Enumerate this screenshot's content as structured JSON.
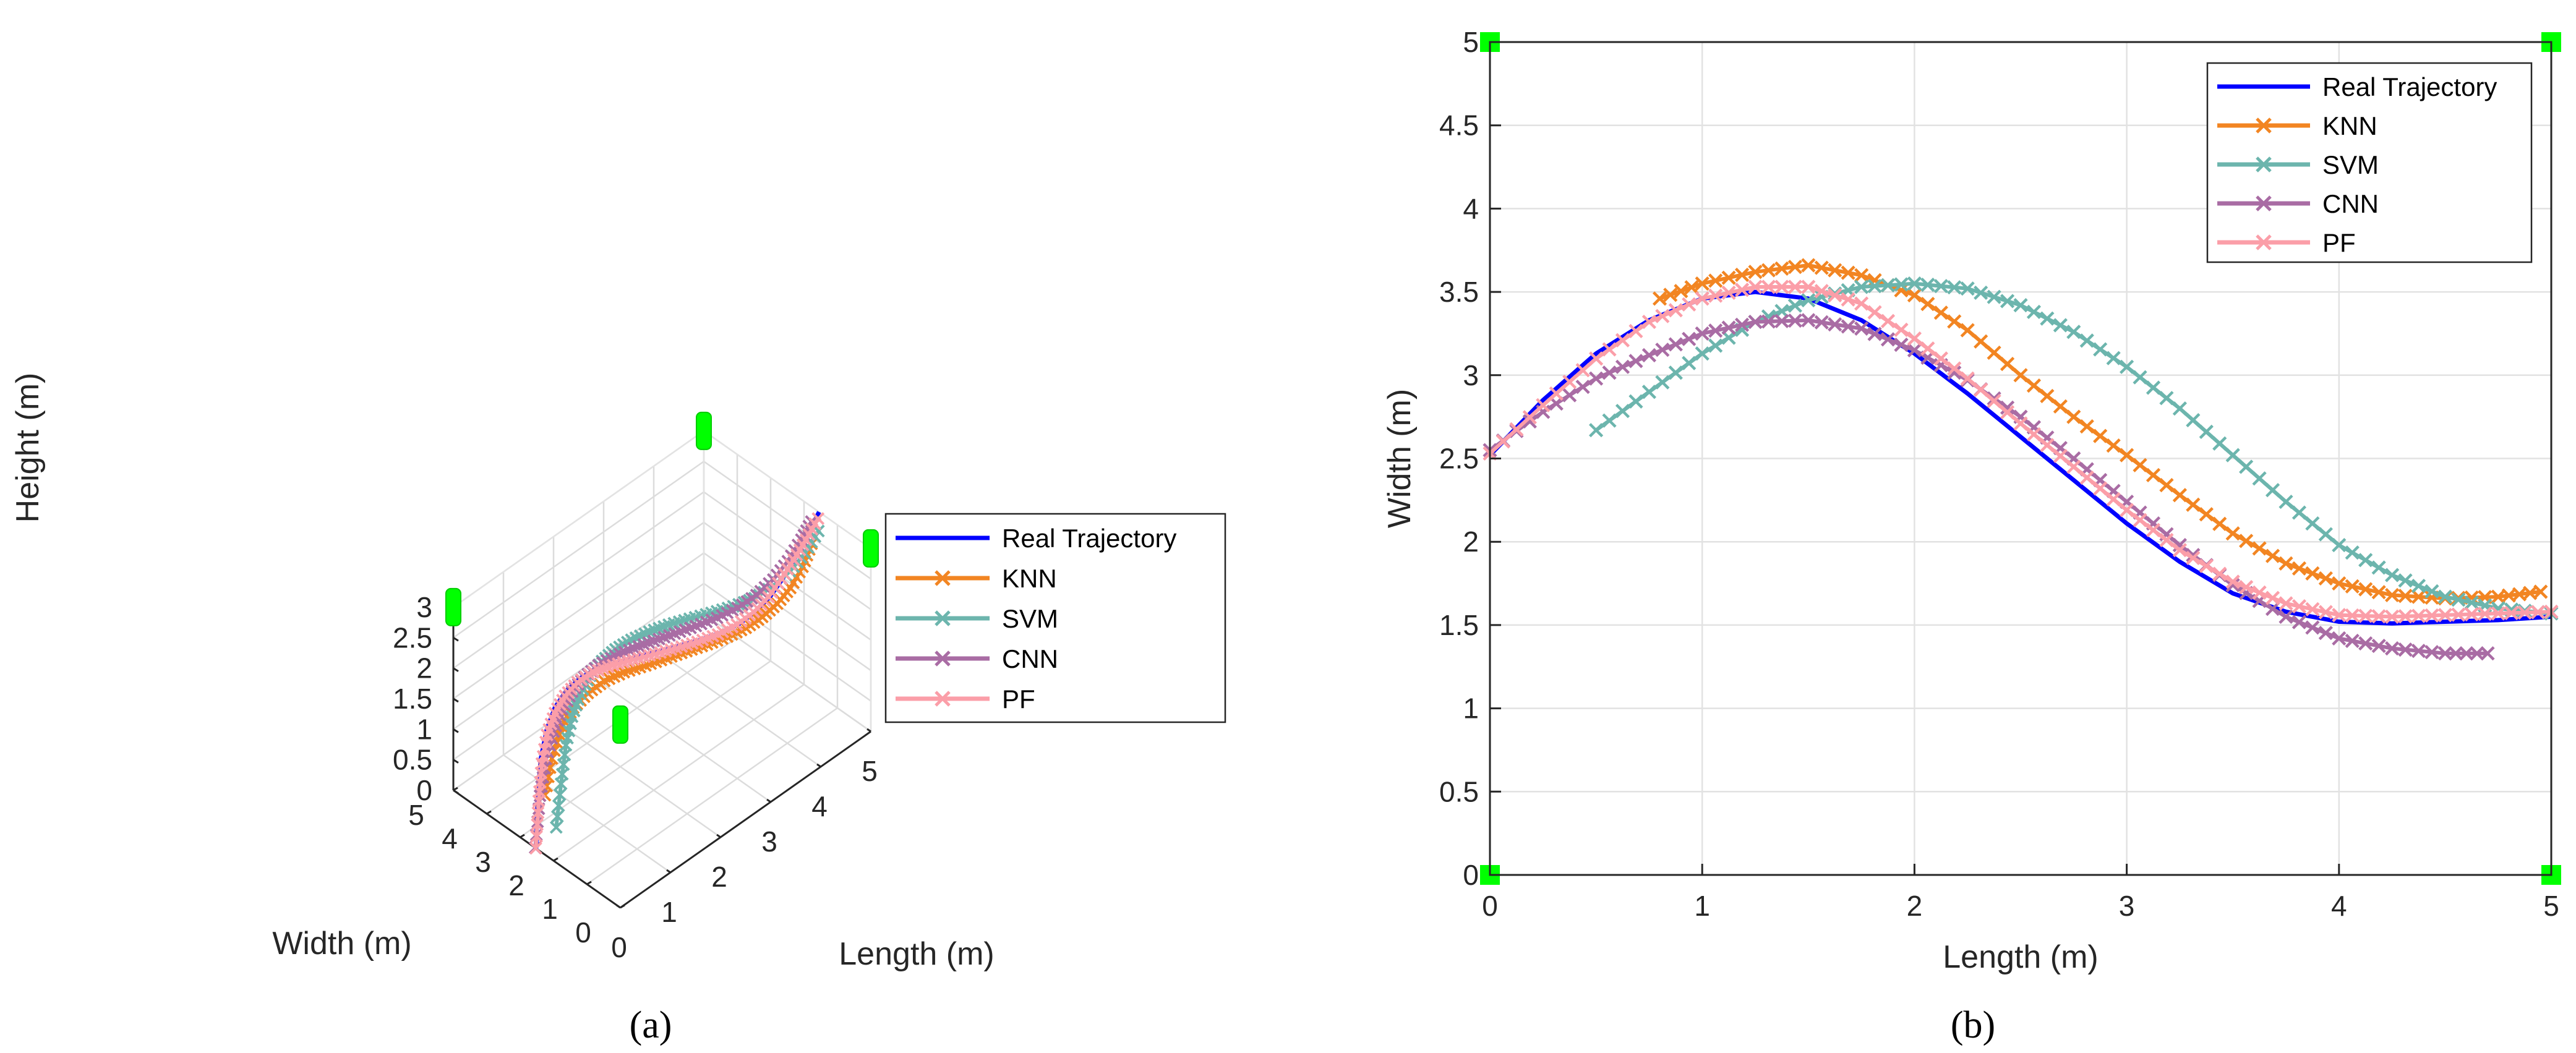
{
  "chart_data": [
    {
      "panel": "a",
      "type": "line3d",
      "subfigure_label": "(a)",
      "xlabel": "Length (m)",
      "ylabel": "Width (m)",
      "zlabel": "Height (m)",
      "xlim": [
        0,
        5
      ],
      "ylim": [
        0,
        5
      ],
      "zlim": [
        0,
        3
      ],
      "xticks": [
        "0",
        "1",
        "2",
        "3",
        "4",
        "5"
      ],
      "yticks": [
        "0",
        "1",
        "2",
        "3",
        "4",
        "5"
      ],
      "zticks": [
        "0",
        "0.5",
        "1",
        "1.5",
        "2",
        "2.5",
        "3"
      ],
      "grid": true,
      "legend_position": "lower-right",
      "anchors": [
        [
          0,
          0,
          3
        ],
        [
          0,
          5,
          3
        ],
        [
          5,
          0,
          3
        ],
        [
          5,
          5,
          3
        ]
      ],
      "series": [
        {
          "name": "Real Trajectory",
          "marker": "none",
          "color": "#0000ff",
          "x": [
            0,
            0.25,
            0.5,
            0.75,
            1,
            1.25,
            1.5,
            1.75,
            2,
            2.25,
            2.5,
            2.75,
            3,
            3.25,
            3.5,
            3.75,
            4,
            4.25,
            4.5,
            4.75,
            5
          ],
          "y": [
            2.52,
            2.85,
            3.13,
            3.33,
            3.46,
            3.5,
            3.46,
            3.33,
            3.13,
            2.89,
            2.63,
            2.37,
            2.11,
            1.88,
            1.69,
            1.58,
            1.52,
            1.51,
            1.52,
            1.53,
            1.55
          ],
          "z": [
            0.0,
            0.58,
            0.95,
            1.2,
            1.37,
            1.48,
            1.56,
            1.62,
            1.66,
            1.7,
            1.74,
            1.79,
            1.84,
            1.9,
            1.98,
            2.08,
            2.2,
            2.36,
            2.55,
            2.77,
            3.0
          ]
        },
        {
          "name": "KNN",
          "marker": "x",
          "color": "#f28522",
          "x": [
            0.8,
            1.0,
            1.25,
            1.5,
            1.75,
            2.0,
            2.25,
            2.5,
            2.75,
            3.0,
            3.25,
            3.5,
            3.75,
            4.0,
            4.25,
            4.5,
            4.75,
            4.95
          ],
          "y": [
            3.46,
            3.55,
            3.62,
            3.66,
            3.6,
            3.48,
            3.27,
            3.0,
            2.75,
            2.52,
            2.28,
            2.05,
            1.87,
            1.75,
            1.68,
            1.66,
            1.67,
            1.7
          ],
          "z": [
            0.05,
            0.5,
            0.85,
            1.0,
            1.12,
            1.22,
            1.3,
            1.37,
            1.44,
            1.5,
            1.56,
            1.63,
            1.7,
            1.78,
            1.88,
            2.0,
            2.2,
            2.45
          ]
        },
        {
          "name": "SVM",
          "marker": "x",
          "color": "#6cb5ad",
          "x": [
            0.5,
            0.75,
            1.0,
            1.25,
            1.5,
            1.75,
            2.0,
            2.25,
            2.5,
            2.75,
            3.0,
            3.25,
            3.5,
            3.75,
            4.0,
            4.25,
            4.5,
            4.75,
            5.0
          ],
          "y": [
            2.67,
            2.9,
            3.13,
            3.32,
            3.45,
            3.53,
            3.55,
            3.52,
            3.42,
            3.26,
            3.05,
            2.8,
            2.52,
            2.24,
            1.98,
            1.8,
            1.67,
            1.6,
            1.57
          ],
          "z": [
            0.0,
            0.48,
            0.88,
            1.13,
            1.31,
            1.43,
            1.52,
            1.58,
            1.63,
            1.68,
            1.73,
            1.78,
            1.84,
            1.91,
            2.0,
            2.12,
            2.27,
            2.45,
            2.68
          ]
        },
        {
          "name": "CNN",
          "marker": "x",
          "color": "#a96ca4",
          "x": [
            0.0,
            0.25,
            0.5,
            0.75,
            1.0,
            1.25,
            1.5,
            1.75,
            2.0,
            2.25,
            2.5,
            2.75,
            3.0,
            3.25,
            3.5,
            3.75,
            4.0,
            4.25,
            4.5,
            4.7
          ],
          "y": [
            2.55,
            2.78,
            2.98,
            3.12,
            3.25,
            3.32,
            3.33,
            3.28,
            3.15,
            2.97,
            2.75,
            2.5,
            2.24,
            1.98,
            1.74,
            1.55,
            1.42,
            1.36,
            1.33,
            1.33
          ],
          "z": [
            0.0,
            0.62,
            1.0,
            1.25,
            1.42,
            1.54,
            1.63,
            1.7,
            1.76,
            1.81,
            1.87,
            1.94,
            2.02,
            2.11,
            2.22,
            2.36,
            2.52,
            2.7,
            2.92,
            3.1
          ]
        },
        {
          "name": "PF",
          "marker": "x",
          "color": "#fb9ea8",
          "x": [
            0.0,
            0.25,
            0.5,
            0.75,
            1.0,
            1.25,
            1.5,
            1.75,
            2.0,
            2.25,
            2.5,
            2.75,
            3.0,
            3.25,
            3.5,
            3.75,
            4.0,
            4.25,
            4.5,
            4.75,
            5.0
          ],
          "y": [
            2.53,
            2.82,
            3.1,
            3.32,
            3.46,
            3.53,
            3.53,
            3.43,
            3.22,
            2.98,
            2.71,
            2.45,
            2.19,
            1.95,
            1.76,
            1.63,
            1.56,
            1.55,
            1.56,
            1.57,
            1.58
          ],
          "z": [
            0.0,
            0.52,
            0.88,
            1.12,
            1.28,
            1.39,
            1.47,
            1.53,
            1.58,
            1.62,
            1.67,
            1.72,
            1.78,
            1.85,
            1.94,
            2.05,
            2.18,
            2.34,
            2.5,
            2.68,
            2.88
          ]
        }
      ]
    },
    {
      "panel": "b",
      "type": "line",
      "subfigure_label": "(b)",
      "xlabel": "Length (m)",
      "ylabel": "Width (m)",
      "xlim": [
        0,
        5
      ],
      "ylim": [
        0,
        5
      ],
      "xticks": [
        "0",
        "1",
        "2",
        "3",
        "4",
        "5"
      ],
      "yticks": [
        "0",
        "0.5",
        "1",
        "1.5",
        "2",
        "2.5",
        "3",
        "3.5",
        "4",
        "4.5",
        "5"
      ],
      "grid": true,
      "legend_position": "top-right",
      "anchors": [
        [
          0,
          0
        ],
        [
          0,
          5
        ],
        [
          5,
          0
        ],
        [
          5,
          5
        ]
      ],
      "series_ref": "same as panel a (x, y columns)"
    }
  ],
  "colors": {
    "real": "#0000ff",
    "knn": "#f28522",
    "svm": "#6cb5ad",
    "cnn": "#a96ca4",
    "pf": "#fb9ea8",
    "anchor": "#00ff00"
  }
}
